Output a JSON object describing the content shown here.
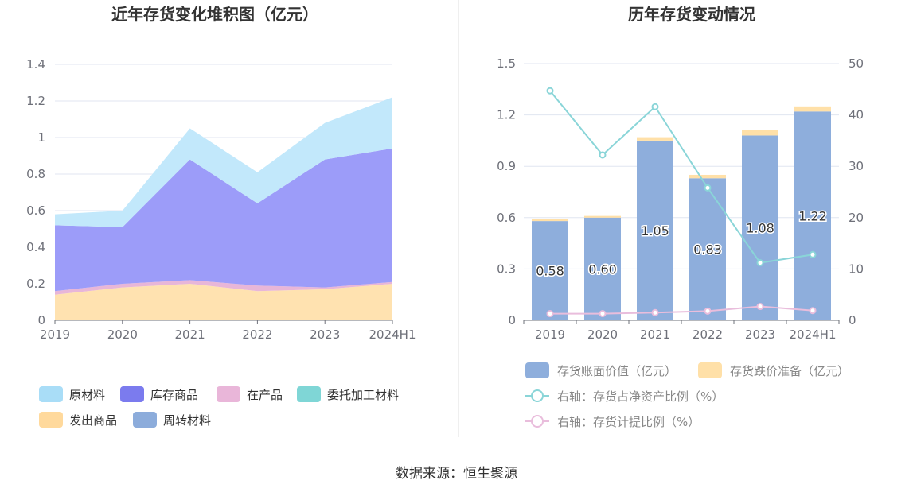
{
  "chart_data": [
    {
      "type": "area",
      "stacked": true,
      "title": "近年存货变化堆积图（亿元）",
      "categories": [
        "2019",
        "2020",
        "2021",
        "2022",
        "2023",
        "2024H1"
      ],
      "ylim": [
        0,
        1.4
      ],
      "yticks": [
        "0",
        "0.2",
        "0.4",
        "0.6",
        "0.8",
        "1",
        "1.2",
        "1.4"
      ],
      "grid": true,
      "series": [
        {
          "name": "发出商品",
          "color": "#ffe2b0",
          "values": [
            0.14,
            0.18,
            0.2,
            0.16,
            0.17,
            0.2
          ]
        },
        {
          "name": "在产品",
          "color": "#e8b6d8",
          "values": [
            0.02,
            0.02,
            0.02,
            0.03,
            0.01,
            0.01
          ]
        },
        {
          "name": "库存商品",
          "color": "#9c9cf9",
          "values": [
            0.36,
            0.31,
            0.66,
            0.45,
            0.7,
            0.73
          ]
        },
        {
          "name": "原材料",
          "color": "#c2e8fb",
          "values": [
            0.06,
            0.09,
            0.17,
            0.17,
            0.2,
            0.28
          ]
        },
        {
          "name": "委托加工材料",
          "color": "#85d6d6",
          "values": [
            0,
            0,
            0,
            0,
            0,
            0
          ]
        },
        {
          "name": "周转材料",
          "color": "#8cacdb",
          "values": [
            0,
            0,
            0,
            0,
            0,
            0
          ]
        }
      ],
      "legend": [
        {
          "name": "原材料",
          "color": "#a9ddf7"
        },
        {
          "name": "库存商品",
          "color": "#7b7bee"
        },
        {
          "name": "在产品",
          "color": "#e9b6d9"
        },
        {
          "name": "委托加工材料",
          "color": "#7fd6d6"
        },
        {
          "name": "发出商品",
          "color": "#ffd99c"
        },
        {
          "name": "周转材料",
          "color": "#8cacdb"
        }
      ]
    },
    {
      "type": "bar",
      "stacked": true,
      "title": "历年存货变动情况",
      "categories": [
        "2019",
        "2020",
        "2021",
        "2022",
        "2023",
        "2024H1"
      ],
      "ylim": [
        0,
        1.5
      ],
      "yticks": [
        "0",
        "0.3",
        "0.6",
        "0.9",
        "1.2",
        "1.5"
      ],
      "y2lim": [
        0,
        50
      ],
      "y2ticks": [
        "0",
        "10",
        "20",
        "30",
        "40",
        "50"
      ],
      "grid": true,
      "series": [
        {
          "name": "存货账面价值（亿元）",
          "color": "#8eaedc",
          "values": [
            0.58,
            0.6,
            1.05,
            0.83,
            1.08,
            1.22
          ],
          "labels": [
            "0.58",
            "0.60",
            "1.05",
            "0.83",
            "1.08",
            "1.22"
          ]
        },
        {
          "name": "存货跌价准备（亿元）",
          "color": "#ffe0a8",
          "values": [
            0.01,
            0.01,
            0.02,
            0.02,
            0.03,
            0.03
          ]
        }
      ],
      "lines": [
        {
          "name": "右轴：存货占净资产比例（%）",
          "color": "#8ad5d8",
          "axis": "right",
          "values": [
            44.7,
            32.2,
            41.6,
            25.8,
            11.2,
            12.8
          ]
        },
        {
          "name": "右轴：存货计提比例（%）",
          "color": "#e9bddc",
          "axis": "right",
          "values": [
            1.3,
            1.3,
            1.5,
            1.8,
            2.7,
            1.9
          ]
        }
      ]
    }
  ],
  "source": "数据来源：恒生聚源"
}
